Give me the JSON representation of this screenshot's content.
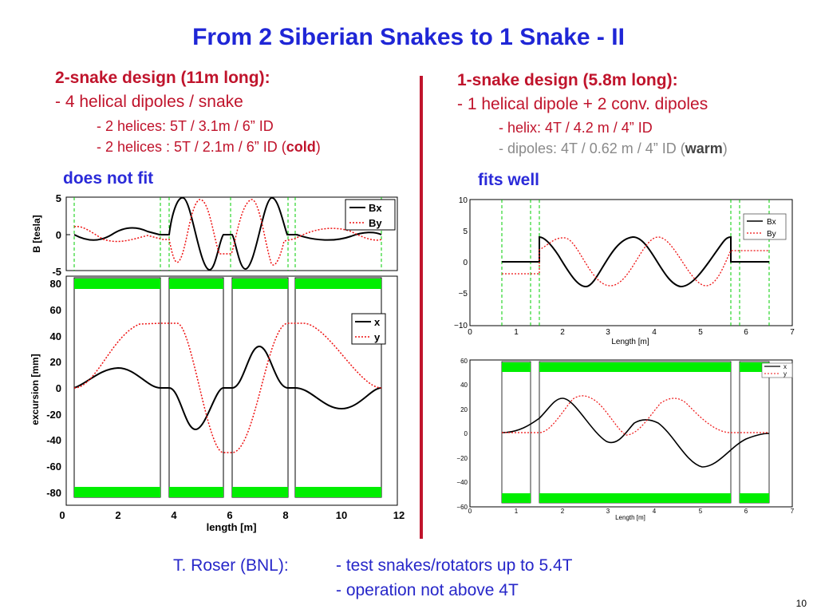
{
  "slide": {
    "title": "From 2 Siberian Snakes to 1 Snake - II",
    "page_number": "10",
    "left": {
      "heading": "2-snake design  (11m long):",
      "line1": "- 4 helical dipoles / snake",
      "line2": "- 2 helices:   5T / 3.1m / 6” ID",
      "line3_prefix": "- 2 helices :  5T / 2.1m / 6” ID (",
      "line3_bold": "cold",
      "line3_suffix": ")",
      "verdict": "does not fit"
    },
    "right": {
      "heading": "1-snake design (5.8m long):",
      "line1": "- 1 helical dipole + 2 conv. dipoles",
      "line2": "- helix:      4T /   4.2 m / 4” ID",
      "line3_prefix": "- dipoles:  4T / 0.62 m / 4” ID (",
      "line3_bold": "warm",
      "line3_suffix": ")",
      "verdict": "fits well"
    },
    "footer": {
      "who": "T. Roser (BNL):",
      "line1": "- test snakes/rotators up to 5.4T",
      "line2": "- operation not above 4T"
    },
    "colors": {
      "title": "#1f26d6",
      "heading": "#c0142c",
      "magnet": "#00ee00",
      "series_x": "#000000",
      "series_y": "#ee1111"
    }
  },
  "chart_data": [
    {
      "id": "left-field",
      "type": "line",
      "xlim": [
        0,
        12
      ],
      "ylim": [
        -5,
        5
      ],
      "ylabel": "B [tesla]",
      "yticks": [
        "5",
        "0",
        "-5"
      ],
      "legend": [
        "Bx",
        "By"
      ],
      "series": [
        {
          "name": "Bx"
        },
        {
          "name": "By"
        }
      ]
    },
    {
      "id": "left-orbit",
      "type": "line",
      "xlim": [
        0,
        12
      ],
      "ylim": [
        -85,
        85
      ],
      "xlabel": "length [m]",
      "ylabel": "excursion [mm]",
      "xticks": [
        "0",
        "2",
        "4",
        "6",
        "8",
        "10",
        "12"
      ],
      "yticks": [
        "80",
        "60",
        "40",
        "20",
        "0",
        "-20",
        "-40",
        "-60",
        "-80"
      ],
      "legend": [
        "x",
        "y"
      ],
      "series": [
        {
          "name": "x"
        },
        {
          "name": "y"
        }
      ]
    },
    {
      "id": "right-field",
      "type": "line",
      "xlim": [
        0,
        7
      ],
      "ylim": [
        -10,
        10
      ],
      "xlabel": "Length [m]",
      "xticks": [
        "0",
        "1",
        "2",
        "3",
        "4",
        "5",
        "6",
        "7"
      ],
      "yticks": [
        "10",
        "5",
        "0",
        "−5",
        "−10"
      ],
      "legend": [
        "Bx",
        "By"
      ],
      "series": [
        {
          "name": "Bx"
        },
        {
          "name": "By"
        }
      ]
    },
    {
      "id": "right-orbit",
      "type": "line",
      "xlim": [
        0,
        7
      ],
      "ylim": [
        -60,
        60
      ],
      "xlabel": "Length [m]",
      "xticks": [
        "0",
        "1",
        "2",
        "3",
        "4",
        "5",
        "6",
        "7"
      ],
      "yticks": [
        "60",
        "40",
        "20",
        "0",
        "−20",
        "−40",
        "−60"
      ],
      "legend": [
        "x",
        "y"
      ],
      "series": [
        {
          "name": "x"
        },
        {
          "name": "y"
        }
      ]
    }
  ]
}
